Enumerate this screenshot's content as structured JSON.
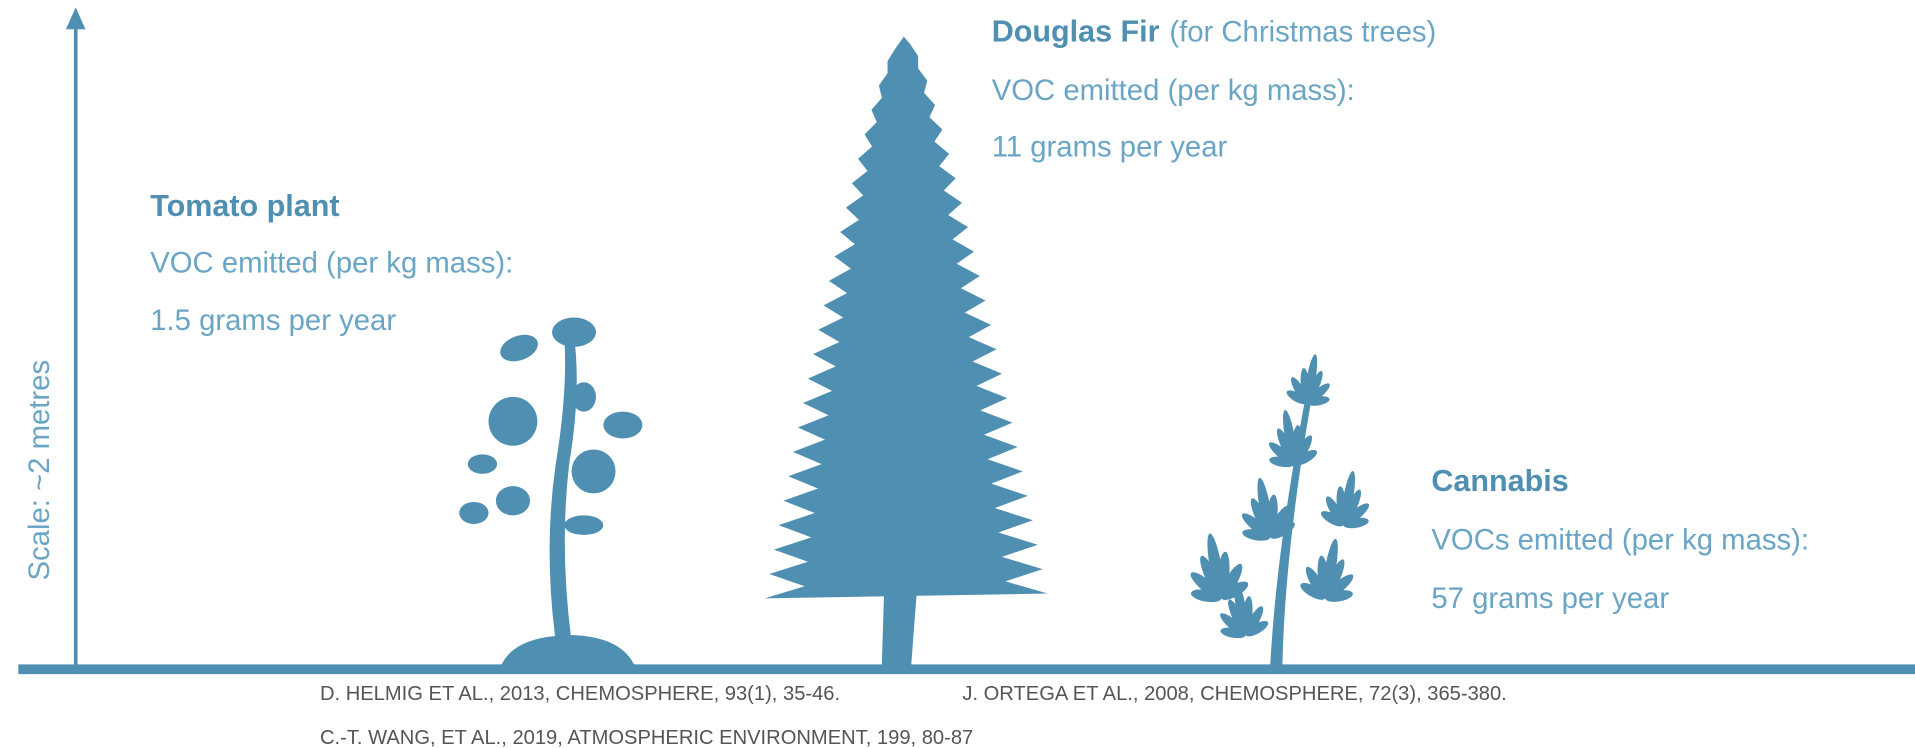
{
  "axis": {
    "label": "Scale: ~2 metres"
  },
  "plants": [
    {
      "name": "Tomato plant",
      "line1": "VOC emitted (per kg mass):",
      "line2": "1.5 grams per year"
    },
    {
      "name": "Douglas Fir",
      "note": "(for Christmas trees)",
      "line1": "VOC emitted (per kg mass):",
      "line2": "11 grams per year"
    },
    {
      "name": "Cannabis",
      "line1": "VOCs emitted (per kg mass):",
      "line2": "57 grams per year"
    }
  ],
  "citations": [
    [
      "D. HELMIG ET AL., 2013, CHEMOSPHERE, 93(1), 35-46.",
      "J. ORTEGA ET AL., 2008, CHEMOSPHERE, 72(3), 365-380."
    ],
    [
      "C.-T. WANG, ET AL., 2019, ATMOSPHERIC ENVIRONMENT, 199, 80-87"
    ]
  ]
}
